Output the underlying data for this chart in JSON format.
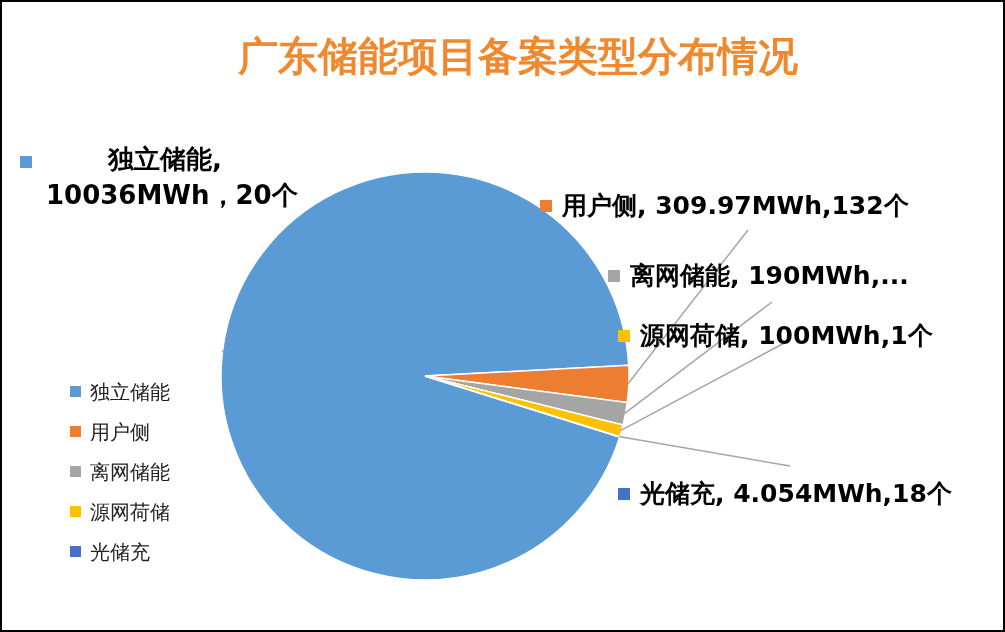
{
  "chart_data": {
    "type": "pie",
    "title": "广东储能项目备案类型分布情况",
    "categories": [
      "独立储能",
      "用户侧",
      "离网储能",
      "源网荷储",
      "光储充"
    ],
    "values": [
      10036,
      309.97,
      190,
      100,
      4.054
    ],
    "colors": [
      "#5b9bd5",
      "#ed7d31",
      "#a5a5a5",
      "#ffc000",
      "#4472c4"
    ],
    "value_labels": [
      "独立储能, 10036MWh，20个",
      "用户侧, 309.97MWh,132个",
      "离网储能, 190MWh,...",
      "源网荷储, 100MWh,1个",
      "光储充, 4.054MWh,18个"
    ],
    "legend": "left"
  }
}
